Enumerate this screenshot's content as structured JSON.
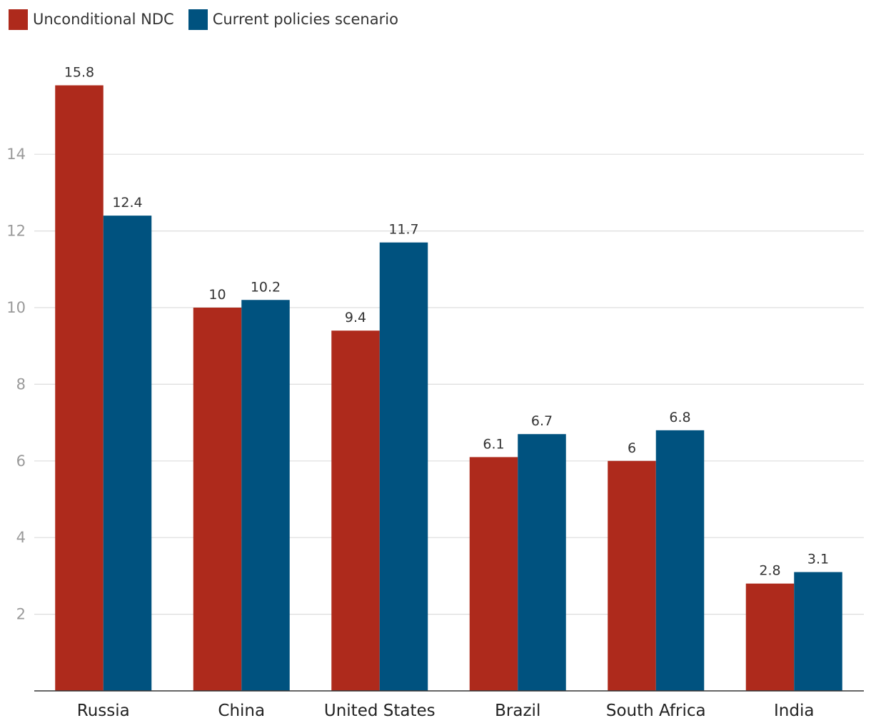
{
  "chart_data": {
    "type": "bar",
    "title": "",
    "xlabel": "",
    "ylabel": "",
    "categories": [
      "Russia",
      "China",
      "United States",
      "Brazil",
      "South Africa",
      "India"
    ],
    "series": [
      {
        "name": "Unconditional NDC",
        "color": "#ae2a1c",
        "values": [
          15.8,
          10,
          9.4,
          6.1,
          6,
          2.8
        ]
      },
      {
        "name": "Current policies scenario",
        "color": "#00527f",
        "values": [
          12.4,
          10.2,
          11.7,
          6.7,
          6.8,
          3.1
        ]
      }
    ],
    "yticks": [
      2,
      4,
      6,
      8,
      10,
      12,
      14
    ],
    "ylim": [
      0,
      16.5
    ],
    "grid": true,
    "legend_position": "top-left"
  }
}
